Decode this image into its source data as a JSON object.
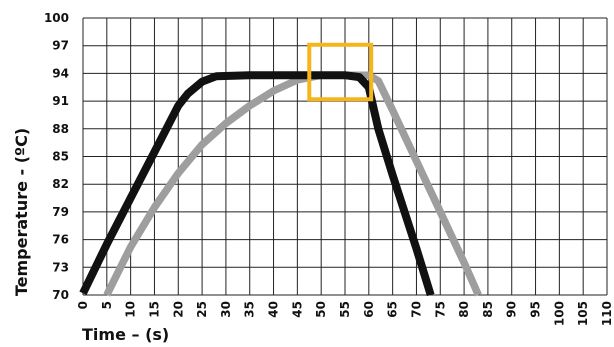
{
  "chart_data": {
    "type": "line",
    "title": "",
    "xlabel": "Time – (s)",
    "ylabel": "Temperature - (ºC)",
    "xlim": [
      0,
      110
    ],
    "ylim": [
      70,
      100
    ],
    "x_ticks": [
      "0",
      "5",
      "10",
      "15",
      "20",
      "25",
      "30",
      "35",
      "40",
      "45",
      "50",
      "55",
      "60",
      "65",
      "70",
      "75",
      "80",
      "85",
      "90",
      "95",
      "100",
      "105",
      "110"
    ],
    "y_ticks": [
      "70",
      "73",
      "76",
      "79",
      "82",
      "85",
      "88",
      "91",
      "94",
      "97",
      "100"
    ],
    "grid": true,
    "legend": "none",
    "series": [
      {
        "color": "#111111",
        "points": [
          [
            0,
            70.2
          ],
          [
            5,
            75.5
          ],
          [
            10,
            80.5
          ],
          [
            15,
            85.5
          ],
          [
            20,
            90.5
          ],
          [
            22,
            91.8
          ],
          [
            25,
            93.1
          ],
          [
            28,
            93.7
          ],
          [
            35,
            93.8
          ],
          [
            45,
            93.8
          ],
          [
            55,
            93.8
          ],
          [
            58,
            93.6
          ],
          [
            60,
            92.5
          ],
          [
            62,
            88
          ],
          [
            65,
            83
          ],
          [
            70,
            75
          ],
          [
            73,
            70
          ]
        ]
      },
      {
        "color": "#9e9e9e",
        "points": [
          [
            5,
            70
          ],
          [
            10,
            75.2
          ],
          [
            15,
            79.5
          ],
          [
            20,
            83.2
          ],
          [
            25,
            86.3
          ],
          [
            30,
            88.6
          ],
          [
            35,
            90.5
          ],
          [
            40,
            92.1
          ],
          [
            45,
            93.3
          ],
          [
            50,
            93.8
          ],
          [
            55,
            93.8
          ],
          [
            60,
            93.8
          ],
          [
            62,
            93.2
          ],
          [
            65,
            90
          ],
          [
            70,
            84.5
          ],
          [
            75,
            79
          ],
          [
            80,
            73.5
          ],
          [
            83,
            70
          ]
        ]
      }
    ],
    "annotations": [
      {
        "type": "rectangle",
        "x_range": [
          47.5,
          60.5
        ],
        "y_range": [
          91.2,
          97.1
        ],
        "color": "#f5b51b"
      }
    ]
  }
}
